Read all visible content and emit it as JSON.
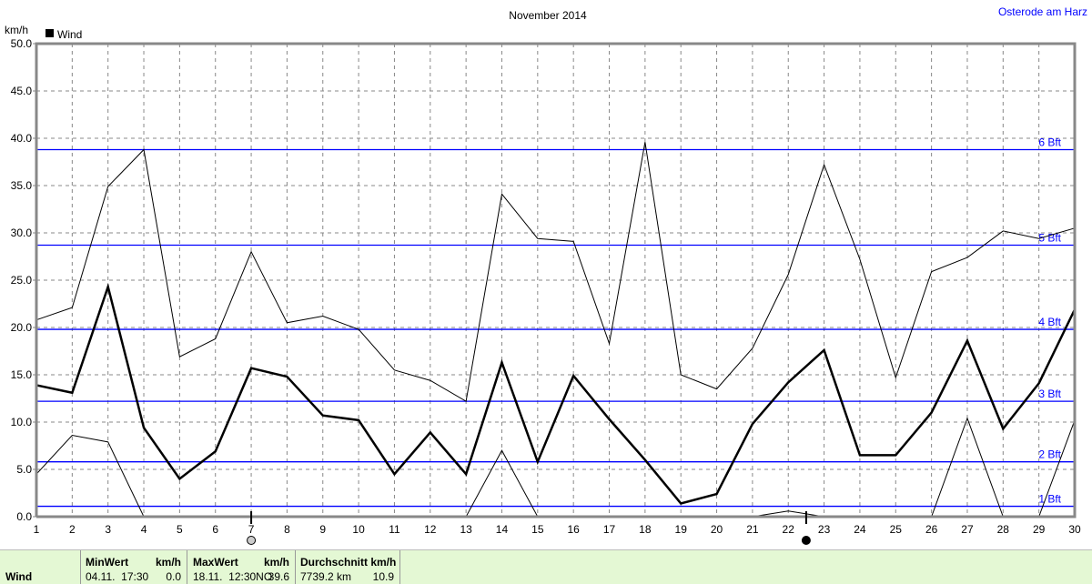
{
  "location": "Osterode am Harz",
  "chart_data": {
    "type": "line",
    "title": "November 2014",
    "ylabel": "km/h",
    "ylim": [
      0,
      50
    ],
    "yticks": [
      "0.0",
      "5.0",
      "10.0",
      "15.0",
      "20.0",
      "25.0",
      "30.0",
      "35.0",
      "40.0",
      "45.0",
      "50.0"
    ],
    "x": [
      1,
      2,
      3,
      4,
      5,
      6,
      7,
      8,
      9,
      10,
      11,
      12,
      13,
      14,
      15,
      16,
      17,
      18,
      19,
      20,
      21,
      22,
      23,
      24,
      25,
      26,
      27,
      28,
      29,
      30
    ],
    "legend": "Wind",
    "series": [
      {
        "name": "Wind max",
        "values": [
          20.8,
          22.1,
          34.9,
          38.8,
          16.9,
          18.8,
          28.0,
          20.5,
          21.2,
          19.8,
          15.5,
          14.4,
          12.2,
          34.1,
          29.4,
          29.1,
          18.3,
          39.6,
          15.0,
          13.5,
          17.8,
          25.6,
          37.2,
          27.2,
          14.7,
          25.9,
          27.4,
          30.2,
          29.4,
          30.5
        ]
      },
      {
        "name": "Wind",
        "values": [
          13.9,
          13.1,
          24.3,
          9.4,
          4.0,
          6.9,
          15.7,
          14.8,
          10.7,
          10.2,
          4.5,
          8.9,
          4.5,
          16.3,
          5.8,
          14.9,
          10.3,
          6.0,
          1.4,
          2.4,
          9.8,
          14.2,
          17.6,
          6.5,
          6.5,
          11.0,
          18.6,
          9.3,
          14.1,
          21.9
        ]
      },
      {
        "name": "Wind min",
        "values": [
          4.5,
          8.6,
          7.9,
          0,
          0,
          0,
          0,
          0,
          0,
          0,
          0,
          0,
          0,
          7.0,
          0,
          0,
          0,
          0,
          0,
          0,
          0,
          0.6,
          0,
          0,
          0,
          0,
          10.4,
          0,
          0,
          10.2
        ]
      }
    ],
    "reference_lines": [
      {
        "label": "1 Bft",
        "value": 1.1
      },
      {
        "label": "2 Bft",
        "value": 5.8
      },
      {
        "label": "3 Bft",
        "value": 12.2
      },
      {
        "label": "4 Bft",
        "value": 19.8
      },
      {
        "label": "5 Bft",
        "value": 28.7
      },
      {
        "label": "6 Bft",
        "value": 38.8
      }
    ],
    "moon_phases": [
      {
        "day": 7,
        "phase": "full"
      },
      {
        "day": 22.5,
        "phase": "new"
      }
    ]
  },
  "table": {
    "row_label": "Wind",
    "min_header": "MinWert",
    "min_unit": "km/h",
    "min_time": "04.11.  17:30",
    "min_value": "0.0",
    "max_header": "MaxWert",
    "max_unit": "km/h",
    "max_time": "18.11.  12:30NO",
    "max_value": "39.6",
    "avg_header": "Durchschnitt km/h",
    "avg_distance": "7739.2 km",
    "avg_value": "10.9"
  },
  "colors": {
    "ref": "#0000ff",
    "grid": "#808080",
    "table_bg": "#e4f8d4"
  }
}
